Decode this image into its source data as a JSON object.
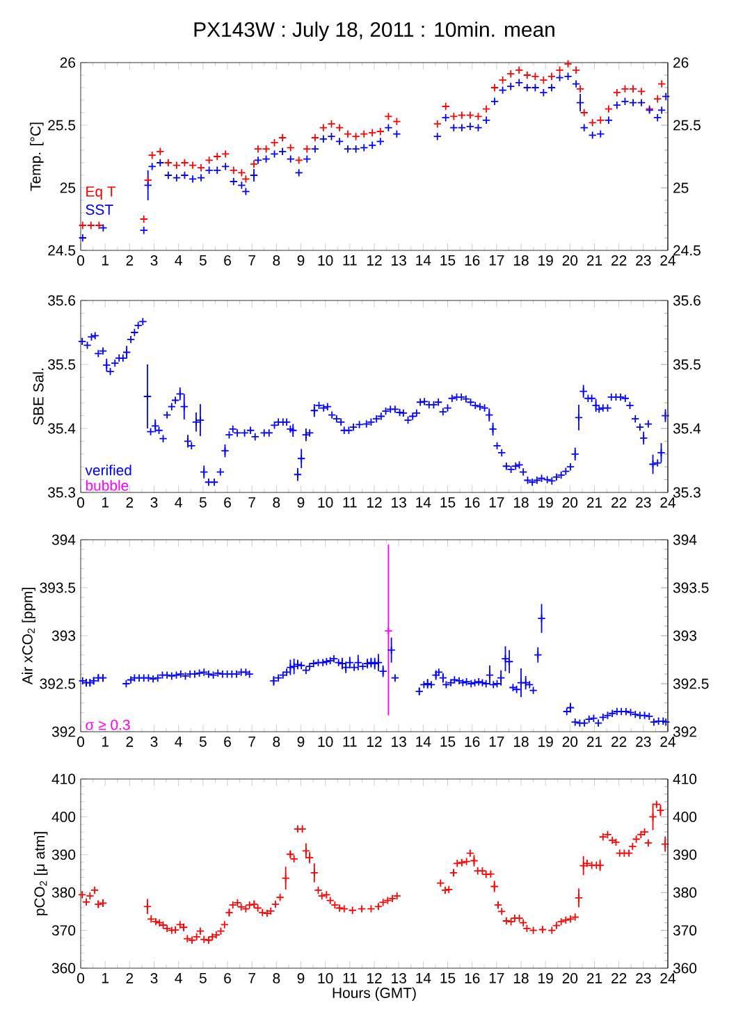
{
  "chart_data": [
    {
      "type": "scatter",
      "title": "PX143W : July 18, 2011 : 10min. mean",
      "ylabel": "Temp. [°C]",
      "xlim": [
        0,
        24
      ],
      "xticks": [
        0,
        1,
        2,
        3,
        4,
        5,
        6,
        7,
        8,
        9,
        10,
        11,
        12,
        13,
        14,
        15,
        16,
        17,
        18,
        19,
        20,
        21,
        22,
        23,
        24
      ],
      "ylim": [
        24.5,
        26
      ],
      "yticks": [
        24.5,
        25,
        25.5,
        26
      ],
      "y2lim": [
        24.5,
        26
      ],
      "y2ticks": [
        24.5,
        25,
        25.5,
        26
      ],
      "marker": "cross",
      "legend": "bottom left",
      "series": [
        {
          "name": "Eq T",
          "color": "#ff0000",
          "x": [
            0.08,
            0.42,
            0.75,
            2.58,
            2.75,
            2.92,
            3.25,
            3.58,
            3.92,
            4.25,
            4.58,
            4.92,
            5.25,
            5.58,
            5.92,
            6.25,
            6.58,
            6.75,
            7.08,
            7.25,
            7.58,
            7.92,
            8.25,
            8.58,
            8.92,
            9.25,
            9.58,
            9.92,
            10.25,
            10.58,
            10.92,
            11.25,
            11.58,
            11.92,
            12.25,
            12.58,
            12.92,
            14.58,
            14.92,
            15.25,
            15.58,
            15.92,
            16.25,
            16.58,
            16.92,
            17.25,
            17.58,
            17.92,
            18.25,
            18.58,
            18.92,
            19.25,
            19.58,
            19.92,
            20.25,
            20.42,
            20.58,
            20.92,
            21.25,
            21.58,
            21.92,
            22.25,
            22.58,
            22.92,
            23.25,
            23.58,
            23.75
          ],
          "values": [
            24.7,
            24.7,
            24.7,
            24.75,
            25.06,
            25.26,
            25.29,
            25.2,
            25.18,
            25.2,
            25.18,
            25.16,
            25.22,
            25.25,
            25.27,
            25.14,
            25.12,
            25.07,
            25.19,
            25.31,
            25.31,
            25.36,
            25.4,
            25.32,
            25.22,
            25.31,
            25.4,
            25.48,
            25.51,
            25.48,
            25.43,
            25.41,
            25.43,
            25.44,
            25.45,
            25.57,
            25.53,
            25.51,
            25.65,
            25.57,
            25.58,
            25.58,
            25.57,
            25.63,
            25.8,
            25.86,
            25.91,
            25.94,
            25.9,
            25.89,
            25.86,
            25.89,
            25.94,
            25.99,
            25.94,
            25.79,
            25.6,
            25.52,
            25.54,
            25.63,
            25.76,
            25.79,
            25.79,
            25.77,
            25.63,
            25.71,
            25.83
          ]
        },
        {
          "name": "SST",
          "color": "#0000ff",
          "x": [
            0.08,
            0.92,
            2.58,
            2.75,
            2.92,
            3.25,
            3.58,
            3.92,
            4.25,
            4.58,
            4.92,
            5.25,
            5.58,
            5.92,
            6.25,
            6.58,
            6.75,
            7.08,
            7.25,
            7.58,
            7.92,
            8.25,
            8.58,
            8.92,
            9.25,
            9.58,
            9.92,
            10.25,
            10.58,
            10.92,
            11.25,
            11.58,
            11.92,
            12.25,
            12.58,
            12.92,
            14.58,
            14.92,
            15.25,
            15.58,
            15.92,
            16.25,
            16.58,
            16.92,
            17.25,
            17.58,
            17.92,
            18.25,
            18.58,
            18.92,
            19.25,
            19.58,
            19.92,
            20.25,
            20.42,
            20.58,
            20.92,
            21.25,
            21.58,
            21.92,
            22.25,
            22.58,
            22.92,
            23.25,
            23.58,
            23.75,
            23.92
          ],
          "values": [
            24.6,
            24.68,
            24.66,
            25.02,
            25.17,
            25.2,
            25.1,
            25.08,
            25.1,
            25.07,
            25.08,
            25.14,
            25.14,
            25.17,
            25.05,
            25.02,
            24.97,
            25.1,
            25.22,
            25.23,
            25.27,
            25.29,
            25.23,
            25.12,
            25.23,
            25.31,
            25.39,
            25.41,
            25.37,
            25.31,
            25.31,
            25.32,
            25.34,
            25.37,
            25.48,
            25.43,
            25.41,
            25.56,
            25.48,
            25.48,
            25.49,
            25.48,
            25.54,
            25.69,
            25.78,
            25.81,
            25.84,
            25.8,
            25.8,
            25.76,
            25.8,
            25.88,
            25.89,
            25.83,
            25.68,
            25.48,
            25.42,
            25.43,
            25.54,
            25.66,
            25.69,
            25.68,
            25.68,
            25.62,
            25.56,
            25.62,
            25.73
          ],
          "errors": [
            null,
            null,
            null,
            0.12,
            null,
            null,
            null,
            null,
            null,
            null,
            null,
            null,
            null,
            null,
            null,
            null,
            null,
            0.05,
            null,
            null,
            null,
            null,
            null,
            null,
            null,
            null,
            null,
            null,
            null,
            null,
            null,
            null,
            null,
            null,
            null,
            null,
            null,
            null,
            null,
            null,
            null,
            null,
            null,
            null,
            null,
            null,
            null,
            null,
            null,
            null,
            null,
            null,
            null,
            null,
            0.07,
            null,
            null,
            null,
            null,
            null,
            null,
            null,
            null,
            null,
            null,
            null,
            null
          ]
        }
      ]
    },
    {
      "type": "scatter",
      "ylabel": "SBE Sal.",
      "xlim": [
        0,
        24
      ],
      "xticks": [
        0,
        1,
        2,
        3,
        4,
        5,
        6,
        7,
        8,
        9,
        10,
        11,
        12,
        13,
        14,
        15,
        16,
        17,
        18,
        19,
        20,
        21,
        22,
        23,
        24
      ],
      "ylim": [
        35.3,
        35.6
      ],
      "yticks": [
        35.3,
        35.4,
        35.5,
        35.6
      ],
      "y2lim": [
        35.3,
        35.6
      ],
      "y2ticks": [
        35.3,
        35.4,
        35.5,
        35.6
      ],
      "marker": "cross",
      "legend": "bottom left",
      "series": [
        {
          "name": "verified",
          "color": "#0000ff",
          "x": [
            0.06,
            0.27,
            0.44,
            0.59,
            0.72,
            0.91,
            1.06,
            1.21,
            1.4,
            1.57,
            1.73,
            1.88,
            2.05,
            2.2,
            2.35,
            2.54,
            2.73,
            2.86,
            3.05,
            3.2,
            3.37,
            3.53,
            3.72,
            3.87,
            4.06,
            4.23,
            4.38,
            4.53,
            4.72,
            4.89,
            5.04,
            5.23,
            5.46,
            5.71,
            5.9,
            6.07,
            6.22,
            6.4,
            6.7,
            6.94,
            7.13,
            7.5,
            7.7,
            7.92,
            8.08,
            8.27,
            8.42,
            8.57,
            8.68,
            8.87,
            9.02,
            9.21,
            9.36,
            9.55,
            9.74,
            9.93,
            10.09,
            10.27,
            10.46,
            10.64,
            10.77,
            10.96,
            11.15,
            11.39,
            11.68,
            11.87,
            12.09,
            12.28,
            12.47,
            12.66,
            12.85,
            13.04,
            13.19,
            13.38,
            13.57,
            13.73,
            13.88,
            14.05,
            14.24,
            14.43,
            14.62,
            14.81,
            15.0,
            15.18,
            15.37,
            15.56,
            15.75,
            15.94,
            16.13,
            16.32,
            16.51,
            16.7,
            16.85,
            17.02,
            17.21,
            17.4,
            17.59,
            17.78,
            17.93,
            18.09,
            18.27,
            18.46,
            18.65,
            18.84,
            19.07,
            19.26,
            19.45,
            19.64,
            19.83,
            20.02,
            20.21,
            20.36,
            20.55,
            20.74,
            20.89,
            21.06,
            21.19,
            21.35,
            21.54,
            21.69,
            21.88,
            22.07,
            22.26,
            22.45,
            22.67,
            22.86,
            23.01,
            23.2,
            23.39,
            23.58,
            23.73,
            23.9
          ],
          "values": [
            35.536,
            35.53,
            35.543,
            35.545,
            35.517,
            35.521,
            35.499,
            35.489,
            35.502,
            35.51,
            35.51,
            35.519,
            35.539,
            35.55,
            35.561,
            35.567,
            35.45,
            35.395,
            35.404,
            35.397,
            35.384,
            35.421,
            35.434,
            35.444,
            35.454,
            35.434,
            35.38,
            35.373,
            35.41,
            35.413,
            35.332,
            35.316,
            35.316,
            35.332,
            35.365,
            35.39,
            35.399,
            35.393,
            35.393,
            35.397,
            35.387,
            35.393,
            35.393,
            35.405,
            35.41,
            35.41,
            35.41,
            35.399,
            35.397,
            35.328,
            35.353,
            35.39,
            35.393,
            35.428,
            35.436,
            35.432,
            35.434,
            35.421,
            35.415,
            35.41,
            35.397,
            35.397,
            35.402,
            35.406,
            35.407,
            35.41,
            35.415,
            35.419,
            35.427,
            35.43,
            35.43,
            35.425,
            35.424,
            35.413,
            35.419,
            35.424,
            35.441,
            35.442,
            35.437,
            35.437,
            35.441,
            35.426,
            35.432,
            35.447,
            35.449,
            35.449,
            35.446,
            35.441,
            35.436,
            35.434,
            35.432,
            35.421,
            35.399,
            35.373,
            35.362,
            35.341,
            35.336,
            35.341,
            35.343,
            35.332,
            35.319,
            35.316,
            35.319,
            35.322,
            35.32,
            35.318,
            35.324,
            35.327,
            35.333,
            35.34,
            35.36,
            35.417,
            35.458,
            35.447,
            35.447,
            35.436,
            35.43,
            35.432,
            35.432,
            35.449,
            35.449,
            35.449,
            35.447,
            35.436,
            35.415,
            35.402,
            35.385,
            35.407,
            35.344,
            35.346,
            35.362,
            35.42
          ],
          "errors": [
            null,
            null,
            null,
            null,
            null,
            null,
            0.01,
            null,
            null,
            null,
            null,
            0.01,
            null,
            null,
            null,
            null,
            0.05,
            null,
            0.01,
            null,
            null,
            null,
            null,
            null,
            0.01,
            0.02,
            0.01,
            null,
            0.015,
            0.025,
            0.01,
            null,
            null,
            null,
            0.01,
            null,
            null,
            null,
            null,
            null,
            null,
            null,
            null,
            null,
            null,
            null,
            null,
            null,
            0.01,
            0.01,
            0.015,
            0.01,
            null,
            0.01,
            null,
            null,
            null,
            null,
            null,
            null,
            null,
            null,
            null,
            null,
            null,
            null,
            null,
            null,
            null,
            null,
            null,
            null,
            null,
            null,
            null,
            null,
            null,
            null,
            null,
            null,
            null,
            null,
            null,
            null,
            null,
            null,
            null,
            null,
            null,
            null,
            null,
            0.01,
            0.01,
            null,
            null,
            null,
            null,
            null,
            null,
            null,
            null,
            null,
            null,
            null,
            null,
            null,
            null,
            null,
            null,
            null,
            0.01,
            0.02,
            0.01,
            null,
            null,
            0.01,
            null,
            null,
            null,
            null,
            null,
            null,
            null,
            null,
            null,
            null,
            0.01,
            null,
            0.015,
            null,
            0.015,
            0.01
          ]
        },
        {
          "name": "bubble",
          "color": "#ff00ff"
        }
      ]
    },
    {
      "type": "scatter",
      "ylabel": "Air xCO$_{2}$ [ppm]",
      "xlim": [
        0,
        24
      ],
      "xticks": [
        0,
        1,
        2,
        3,
        4,
        5,
        6,
        7,
        8,
        9,
        10,
        11,
        12,
        13,
        14,
        15,
        16,
        17,
        18,
        19,
        20,
        21,
        22,
        23,
        24
      ],
      "ylim": [
        392,
        394
      ],
      "yticks": [
        392,
        392.5,
        393,
        393.5,
        394
      ],
      "y2lim": [
        392,
        394
      ],
      "y2ticks": [
        392,
        392.5,
        393,
        393.5,
        394
      ],
      "marker": "cross",
      "legend": "bottom left",
      "series": [
        {
          "color": "#0000ff",
          "x": [
            0.08,
            0.23,
            0.38,
            0.53,
            0.72,
            0.91,
            1.86,
            2.05,
            2.2,
            2.39,
            2.58,
            2.77,
            2.96,
            3.15,
            3.34,
            3.53,
            3.72,
            3.91,
            4.09,
            4.28,
            4.47,
            4.66,
            4.85,
            5.04,
            5.23,
            5.42,
            5.61,
            5.8,
            5.99,
            6.18,
            6.37,
            6.56,
            6.75,
            6.9,
            7.89,
            8.08,
            8.27,
            8.42,
            8.57,
            8.72,
            8.87,
            9.02,
            9.21,
            9.36,
            9.52,
            9.71,
            9.9,
            10.05,
            10.2,
            10.35,
            10.54,
            10.69,
            10.84,
            11.0,
            11.18,
            11.34,
            11.53,
            11.72,
            11.87,
            12.02,
            12.17,
            12.36,
            12.7,
            12.85,
            13.84,
            14.03,
            14.18,
            14.33,
            14.52,
            14.64,
            14.81,
            14.94,
            15.13,
            15.28,
            15.47,
            15.62,
            15.77,
            15.96,
            16.11,
            16.27,
            16.42,
            16.57,
            16.72,
            16.87,
            17.02,
            17.18,
            17.36,
            17.52,
            17.67,
            17.82,
            18.0,
            18.19,
            18.35,
            18.5,
            18.69,
            18.84,
            19.87,
            20.02,
            20.21,
            20.4,
            20.59,
            20.78,
            20.97,
            21.16,
            21.35,
            21.54,
            21.73,
            21.92,
            22.1,
            22.29,
            22.48,
            22.67,
            22.86,
            23.05,
            23.24,
            23.43,
            23.62,
            23.81,
            23.92
          ],
          "values": [
            392.53,
            392.51,
            392.51,
            392.53,
            392.56,
            392.56,
            392.5,
            392.54,
            392.56,
            392.56,
            392.56,
            392.56,
            392.55,
            392.56,
            392.59,
            392.59,
            392.58,
            392.59,
            392.6,
            392.58,
            392.6,
            392.6,
            392.61,
            392.62,
            392.6,
            392.59,
            392.61,
            392.6,
            392.6,
            392.6,
            392.6,
            392.62,
            392.62,
            392.6,
            392.53,
            392.56,
            392.59,
            392.62,
            392.67,
            392.68,
            392.7,
            392.69,
            392.64,
            392.68,
            392.71,
            392.72,
            392.72,
            392.73,
            392.74,
            392.76,
            392.72,
            392.71,
            392.67,
            392.72,
            392.67,
            392.72,
            392.68,
            392.71,
            392.72,
            392.71,
            392.72,
            392.63,
            392.85,
            392.56,
            392.42,
            392.49,
            392.5,
            392.49,
            392.59,
            392.62,
            392.56,
            392.49,
            392.51,
            392.54,
            392.53,
            392.51,
            392.52,
            392.5,
            392.51,
            392.52,
            392.51,
            392.5,
            392.59,
            392.49,
            392.5,
            392.56,
            392.76,
            392.73,
            392.46,
            392.44,
            392.51,
            392.51,
            392.49,
            392.43,
            392.8,
            393.18,
            392.21,
            392.25,
            392.1,
            392.09,
            392.09,
            392.13,
            392.14,
            392.09,
            392.15,
            392.17,
            392.19,
            392.21,
            392.21,
            392.21,
            392.2,
            392.18,
            392.17,
            392.17,
            392.16,
            392.1,
            392.11,
            392.11,
            392.1
          ],
          "errors": [
            null,
            0.04,
            0.04,
            0.04,
            0.04,
            0.04,
            null,
            null,
            null,
            null,
            null,
            null,
            null,
            null,
            null,
            null,
            null,
            null,
            null,
            null,
            null,
            null,
            null,
            null,
            null,
            null,
            null,
            null,
            null,
            null,
            null,
            null,
            null,
            null,
            0.05,
            null,
            null,
            null,
            0.08,
            0.08,
            0.05,
            null,
            null,
            null,
            null,
            null,
            null,
            null,
            null,
            null,
            null,
            0.06,
            0.06,
            0.06,
            null,
            0.08,
            null,
            0.05,
            0.05,
            0.06,
            0.09,
            0.06,
            0.13,
            null,
            0.04,
            null,
            0.05,
            null,
            0.05,
            null,
            0.05,
            null,
            null,
            null,
            null,
            null,
            null,
            null,
            null,
            null,
            null,
            null,
            0.1,
            null,
            null,
            0.08,
            0.13,
            0.12,
            null,
            null,
            0.15,
            0.07,
            null,
            null,
            0.08,
            0.15,
            null,
            0.05,
            null,
            null,
            null,
            null,
            null,
            null,
            null,
            null,
            null,
            null,
            null,
            null,
            null,
            null,
            null,
            null,
            null,
            null,
            null,
            null,
            null
          ]
        },
        {
          "name": "σ ≥ 0.3",
          "color": "#ff00ff",
          "x": [
            12.58
          ],
          "values": [
            393.05
          ],
          "errors": [
            [
              392.17,
              393.95
            ]
          ]
        }
      ]
    },
    {
      "type": "scatter",
      "ylabel": "pCO$_{2}$ [μ atm]",
      "xlabel": "Hours (GMT)",
      "xlim": [
        0,
        24
      ],
      "xticks": [
        0,
        1,
        2,
        3,
        4,
        5,
        6,
        7,
        8,
        9,
        10,
        11,
        12,
        13,
        14,
        15,
        16,
        17,
        18,
        19,
        20,
        21,
        22,
        23,
        24
      ],
      "ylim": [
        360,
        410
      ],
      "yticks": [
        360,
        370,
        380,
        390,
        400,
        410
      ],
      "y2lim": [
        360,
        410
      ],
      "y2ticks": [
        360,
        370,
        380,
        390,
        400,
        410
      ],
      "marker": "cross",
      "series": [
        {
          "color": "#ff0000",
          "x": [
            0.06,
            0.23,
            0.38,
            0.57,
            0.72,
            0.91,
            2.73,
            2.88,
            3.07,
            3.22,
            3.37,
            3.53,
            3.72,
            3.87,
            4.06,
            4.21,
            4.36,
            4.55,
            4.74,
            4.89,
            5.04,
            5.23,
            5.38,
            5.54,
            5.73,
            5.88,
            6.07,
            6.22,
            6.41,
            6.56,
            6.75,
            6.9,
            7.09,
            7.24,
            7.43,
            7.62,
            7.77,
            7.96,
            8.15,
            8.38,
            8.57,
            8.72,
            8.87,
            9.06,
            9.21,
            9.36,
            9.55,
            9.71,
            9.86,
            10.05,
            10.2,
            10.39,
            10.58,
            10.77,
            11.11,
            11.49,
            11.87,
            12.17,
            12.36,
            12.55,
            12.74,
            12.93,
            14.71,
            14.9,
            15.05,
            15.24,
            15.39,
            15.58,
            15.77,
            15.92,
            16.08,
            16.23,
            16.42,
            16.57,
            16.76,
            16.91,
            17.06,
            17.21,
            17.4,
            17.59,
            17.74,
            17.93,
            18.09,
            18.24,
            18.5,
            18.88,
            19.26,
            19.45,
            19.64,
            19.83,
            20.02,
            20.21,
            20.36,
            20.55,
            20.7,
            20.89,
            21.08,
            21.23,
            21.35,
            21.54,
            21.73,
            21.88,
            22.03,
            22.22,
            22.41,
            22.56,
            22.71,
            22.9,
            23.05,
            23.2,
            23.39,
            23.54,
            23.7,
            23.89
          ],
          "values": [
            379.4,
            377.5,
            379.1,
            380.6,
            376.9,
            377.2,
            376.3,
            373,
            372.3,
            372,
            371.4,
            370.5,
            370,
            370.1,
            371.5,
            370.8,
            367.8,
            367.4,
            368.3,
            369.8,
            367.6,
            367.4,
            368.3,
            368.8,
            369.8,
            371.5,
            374.7,
            376.7,
            377.3,
            376.2,
            375.7,
            376.7,
            376.9,
            375.9,
            374.7,
            374.5,
            375.1,
            376.9,
            378.7,
            383.8,
            390.1,
            388.9,
            396.8,
            396.8,
            391,
            389.2,
            385.2,
            380.6,
            379.1,
            379.4,
            377.9,
            376.7,
            375.9,
            375.7,
            375.3,
            375.7,
            375.7,
            376.3,
            377.4,
            377.9,
            378.4,
            379.1,
            382.5,
            380.6,
            380.8,
            385.2,
            387.7,
            387.9,
            388.2,
            390.4,
            388.4,
            385.7,
            385.7,
            384.8,
            384.9,
            381.6,
            376.7,
            375,
            372.5,
            372.3,
            373.2,
            373.2,
            372,
            370.5,
            370,
            370.2,
            370,
            371.3,
            372.3,
            372.7,
            373,
            373.5,
            378.6,
            387.1,
            387.7,
            387.2,
            387.2,
            387.2,
            394.7,
            395.3,
            393.8,
            393.3,
            390.4,
            390.4,
            390.4,
            392.2,
            394.1,
            395.3,
            396,
            393.1,
            400,
            403.3,
            401.7,
            392.8
          ],
          "errors": [
            null,
            null,
            null,
            null,
            1,
            1,
            2,
            null,
            null,
            null,
            null,
            null,
            null,
            null,
            null,
            1,
            null,
            null,
            null,
            null,
            null,
            null,
            null,
            null,
            null,
            null,
            1,
            null,
            null,
            null,
            null,
            null,
            1,
            null,
            null,
            null,
            null,
            null,
            null,
            3,
            1,
            null,
            null,
            null,
            2,
            1.5,
            2.5,
            null,
            null,
            null,
            null,
            null,
            null,
            null,
            null,
            null,
            null,
            null,
            null,
            null,
            null,
            null,
            null,
            null,
            null,
            1,
            null,
            null,
            null,
            null,
            1.5,
            null,
            null,
            null,
            null,
            1.5,
            1,
            null,
            null,
            null,
            null,
            null,
            null,
            null,
            null,
            null,
            null,
            null,
            null,
            null,
            null,
            null,
            2.5,
            2.5,
            null,
            null,
            null,
            1.5,
            null,
            null,
            null,
            null,
            null,
            null,
            null,
            null,
            null,
            null,
            null,
            null,
            3.5,
            null,
            1.5,
            2
          ]
        }
      ]
    }
  ]
}
